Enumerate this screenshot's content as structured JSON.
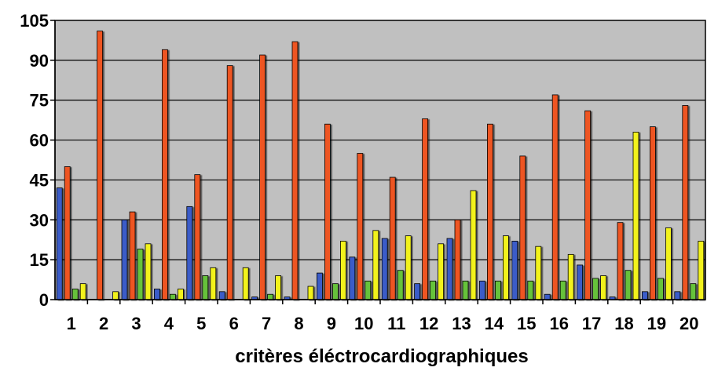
{
  "chart_data": {
    "type": "bar",
    "xlabel": "critères éléctrocardiographiques",
    "ylabel": "",
    "ylim": [
      0,
      105
    ],
    "yticks": [
      0,
      15,
      30,
      45,
      60,
      75,
      90,
      105
    ],
    "grid": true,
    "categories": [
      "1",
      "2",
      "3",
      "4",
      "5",
      "6",
      "7",
      "8",
      "9",
      "10",
      "11",
      "12",
      "13",
      "14",
      "15",
      "16",
      "17",
      "18",
      "19",
      "20"
    ],
    "series": [
      {
        "color": "#3a5cc8",
        "values": [
          42,
          0,
          30,
          4,
          35,
          3,
          1,
          1,
          10,
          16,
          23,
          6,
          23,
          7,
          22,
          2,
          13,
          1,
          3,
          3
        ]
      },
      {
        "color": "#ee5522",
        "values": [
          50,
          101,
          33,
          94,
          47,
          88,
          92,
          97,
          66,
          55,
          46,
          68,
          30,
          66,
          54,
          77,
          71,
          29,
          65,
          73
        ]
      },
      {
        "color": "#66c23a",
        "values": [
          4,
          0,
          19,
          2,
          9,
          0,
          2,
          0,
          6,
          7,
          11,
          7,
          7,
          7,
          7,
          7,
          8,
          11,
          8,
          6
        ]
      },
      {
        "color": "#f2f21a",
        "values": [
          6,
          3,
          21,
          4,
          12,
          12,
          9,
          5,
          22,
          26,
          24,
          21,
          41,
          24,
          20,
          17,
          9,
          63,
          27,
          22
        ]
      }
    ]
  }
}
